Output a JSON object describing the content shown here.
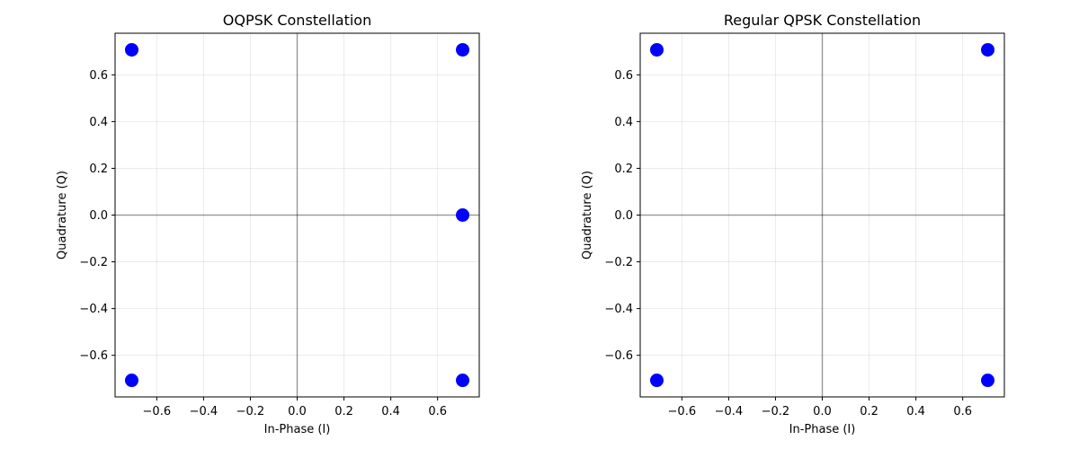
{
  "chart_data": [
    {
      "type": "scatter",
      "title": "OQPSK Constellation",
      "xlabel": "In-Phase (I)",
      "ylabel": "Quadrature (Q)",
      "xlim": [
        -0.778,
        0.778
      ],
      "ylim": [
        -0.778,
        0.778
      ],
      "xticks": [
        -0.6,
        -0.4,
        -0.2,
        0.0,
        0.2,
        0.4,
        0.6
      ],
      "yticks": [
        -0.6,
        -0.4,
        -0.2,
        0.0,
        0.2,
        0.4,
        0.6
      ],
      "grid": true,
      "reference_lines": {
        "x": 0,
        "y": 0
      },
      "marker_color": "#0000ff",
      "series": [
        {
          "points": [
            {
              "x": -0.707,
              "y": 0.707
            },
            {
              "x": 0.707,
              "y": 0.707
            },
            {
              "x": 0.707,
              "y": 0.0
            },
            {
              "x": -0.707,
              "y": -0.707
            },
            {
              "x": 0.707,
              "y": -0.707
            }
          ]
        }
      ]
    },
    {
      "type": "scatter",
      "title": "Regular QPSK Constellation",
      "xlabel": "In-Phase (I)",
      "ylabel": "Quadrature (Q)",
      "xlim": [
        -0.778,
        0.778
      ],
      "ylim": [
        -0.778,
        0.778
      ],
      "xticks": [
        -0.6,
        -0.4,
        -0.2,
        0.0,
        0.2,
        0.4,
        0.6
      ],
      "yticks": [
        -0.6,
        -0.4,
        -0.2,
        0.0,
        0.2,
        0.4,
        0.6
      ],
      "grid": true,
      "reference_lines": {
        "x": 0,
        "y": 0
      },
      "marker_color": "#0000ff",
      "series": [
        {
          "points": [
            {
              "x": -0.707,
              "y": 0.707
            },
            {
              "x": 0.707,
              "y": 0.707
            },
            {
              "x": -0.707,
              "y": -0.707
            },
            {
              "x": 0.707,
              "y": -0.707
            }
          ]
        }
      ]
    }
  ]
}
